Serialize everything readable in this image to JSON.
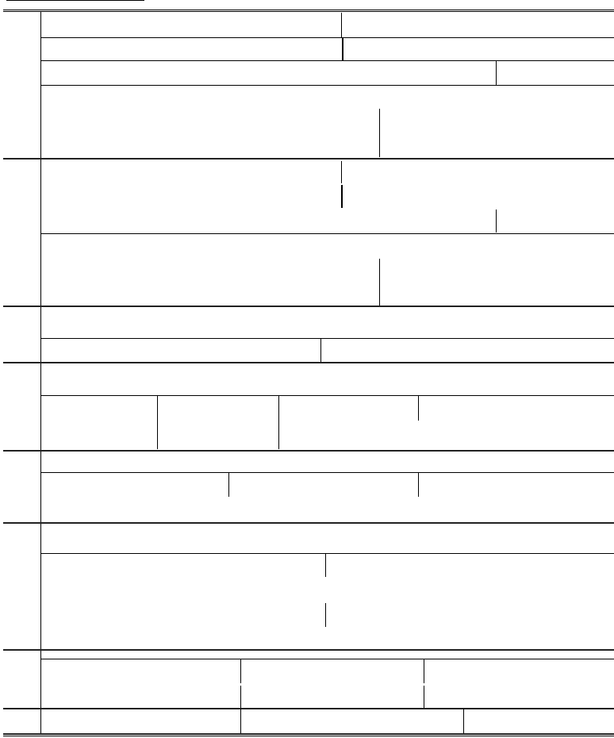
{
  "form": {
    "title": "",
    "sections": 8
  }
}
